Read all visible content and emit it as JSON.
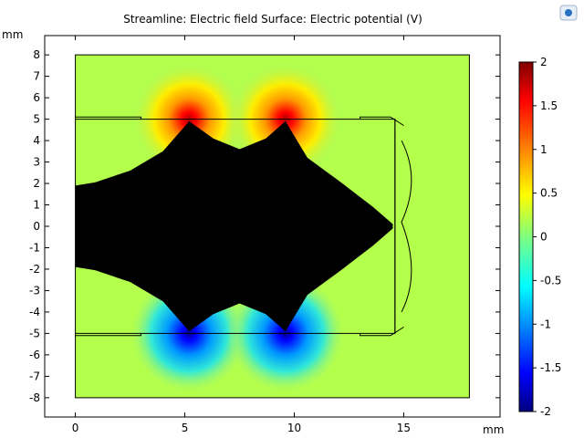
{
  "chart_data": {
    "type": "heatmap",
    "title": "Streamline: Electric field  Surface: Electric potential (V)",
    "xlabel": "mm",
    "ylabel": "mm",
    "xlim": [
      -1.4,
      19.4
    ],
    "ylim": [
      -8.9,
      8.9
    ],
    "x_ticks": [
      0,
      5,
      10,
      15
    ],
    "y_ticks": [
      8,
      7,
      6,
      5,
      4,
      3,
      2,
      1,
      0,
      -1,
      -2,
      -3,
      -4,
      -5,
      -6,
      -7,
      -8
    ],
    "colorbar": {
      "min": -2,
      "max": 2,
      "ticks": [
        2,
        1.5,
        1,
        0.5,
        0,
        -0.5,
        -1,
        -1.5,
        -2
      ],
      "colormap": "jet"
    },
    "domain": {
      "x": [
        0,
        18
      ],
      "y": [
        -8,
        8
      ]
    },
    "electrodes": [
      {
        "x": 5.2,
        "y": 5,
        "potential": 2
      },
      {
        "x": 9.6,
        "y": 5,
        "potential": 2
      },
      {
        "x": 5.2,
        "y": -5,
        "potential": -2
      },
      {
        "x": 9.6,
        "y": -5,
        "potential": -2
      }
    ],
    "background_potential": 0.2,
    "streamline_region_color": "#000000"
  },
  "colors": {
    "background": "#ffffff",
    "axis": "#000000",
    "grid": "#000000"
  },
  "icons": {
    "top_right": "comsol-logo-icon"
  }
}
